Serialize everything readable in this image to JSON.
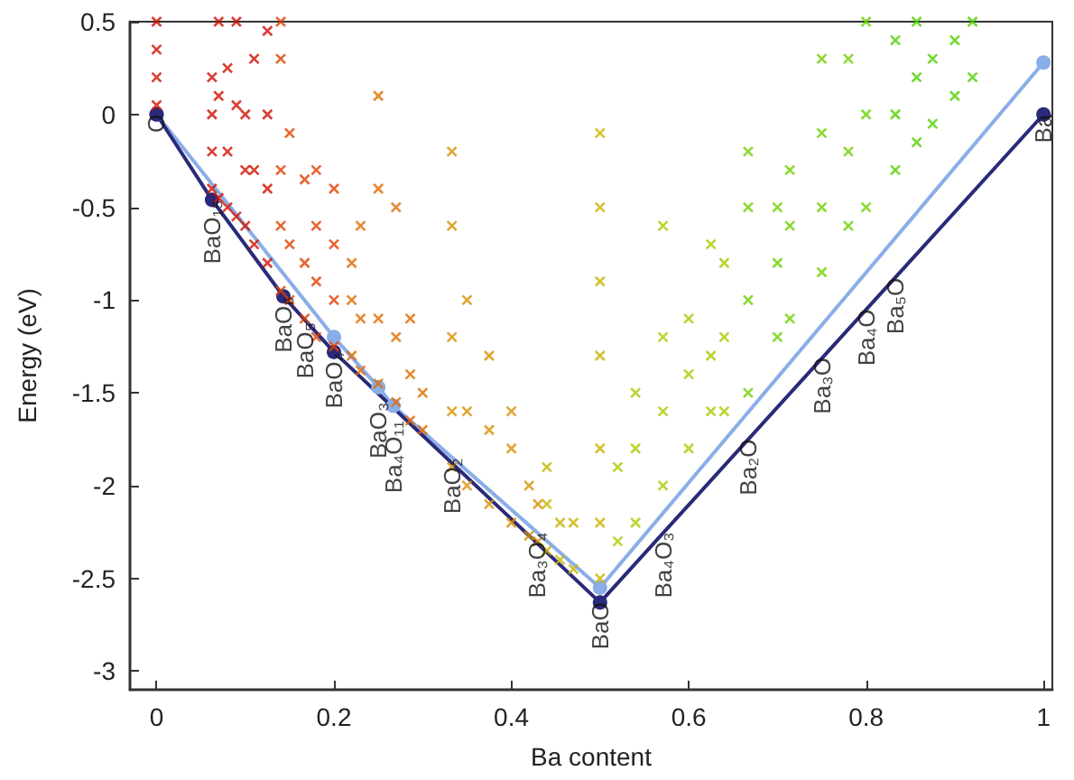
{
  "chart_data": {
    "type": "scatter",
    "xlabel": "Ba content",
    "ylabel": "Energy (eV)",
    "xlim": [
      -0.03,
      1.01
    ],
    "ylim": [
      -3.1,
      0.5
    ],
    "xticks": [
      0,
      0.2,
      0.4,
      0.6,
      0.8,
      1
    ],
    "yticks": [
      -3,
      -2.5,
      -2,
      -1.5,
      -1,
      -0.5,
      0,
      0.5
    ],
    "grid": false,
    "series": [
      {
        "marker": "cross",
        "color": "#d01000",
        "x": [
          0,
          0,
          0,
          0,
          0.0625,
          0.0625,
          0.0625,
          0.0625,
          0.07,
          0.07,
          0.07,
          0.08,
          0.08,
          0.08,
          0.09,
          0.09,
          0.09,
          0.1,
          0.1,
          0.1,
          0.11,
          0.11,
          0.11,
          0.125,
          0.125,
          0.125,
          0.125
        ],
        "values": [
          0.05,
          0.2,
          0.35,
          0.5,
          -0.4,
          -0.2,
          0,
          0.2,
          -0.45,
          0.1,
          0.5,
          -0.5,
          -0.2,
          0.25,
          -0.55,
          0.05,
          0.5,
          -0.6,
          -0.3,
          0,
          -0.7,
          -0.3,
          0.3,
          -0.8,
          -0.4,
          0,
          0.45
        ]
      },
      {
        "marker": "cross",
        "color": "#e04000",
        "x": [
          0.14,
          0.14,
          0.14,
          0.14,
          0.14,
          0.15,
          0.15,
          0.15,
          0.167,
          0.167,
          0.167,
          0.18,
          0.18,
          0.18,
          0.18,
          0.2,
          0.2,
          0.2,
          0.2
        ],
        "values": [
          -0.95,
          -0.6,
          -0.3,
          0.3,
          0.5,
          -1,
          -0.7,
          -0.1,
          -1.1,
          -0.8,
          -0.35,
          -1.2,
          -0.9,
          -0.6,
          -0.3,
          -1.25,
          -1,
          -0.7,
          -0.4
        ]
      },
      {
        "marker": "cross",
        "color": "#e06a00",
        "x": [
          0.22,
          0.22,
          0.22,
          0.23,
          0.23,
          0.23,
          0.25,
          0.25,
          0.25,
          0.25,
          0.27,
          0.27,
          0.27,
          0.286,
          0.286,
          0.286,
          0.3,
          0.3
        ],
        "values": [
          -1.3,
          -1,
          -0.8,
          -1.38,
          -1.1,
          -0.6,
          -1.45,
          -1.1,
          -0.4,
          0.1,
          -1.55,
          -1.2,
          -0.5,
          -1.65,
          -1.4,
          -1.1,
          -1.7,
          -1.5
        ]
      },
      {
        "marker": "cross",
        "color": "#d89000",
        "x": [
          0.333,
          0.333,
          0.333,
          0.333,
          0.333,
          0.35,
          0.35,
          0.35,
          0.375,
          0.375,
          0.375,
          0.4,
          0.4,
          0.4,
          0.42,
          0.42,
          0.43,
          0.43
        ],
        "values": [
          -1.9,
          -1.6,
          -1.2,
          -0.6,
          -0.2,
          -2,
          -1.6,
          -1,
          -2.1,
          -1.7,
          -1.3,
          -2.2,
          -1.8,
          -1.6,
          -2.27,
          -2,
          -2.3,
          -2.1
        ]
      },
      {
        "marker": "cross",
        "color": "#c8b400",
        "x": [
          0.44,
          0.44,
          0.44,
          0.455,
          0.455,
          0.47,
          0.47,
          0.5,
          0.5,
          0.5,
          0.5,
          0.5,
          0.5,
          0.5
        ],
        "values": [
          -2.35,
          -2.1,
          -1.9,
          -2.4,
          -2.2,
          -2.45,
          -2.2,
          -2.5,
          -2.2,
          -1.8,
          -1.3,
          -0.9,
          -0.5,
          -0.1
        ]
      },
      {
        "marker": "cross",
        "color": "#a8cc00",
        "x": [
          0.52,
          0.52,
          0.54,
          0.54,
          0.54,
          0.571,
          0.571,
          0.571,
          0.571,
          0.6,
          0.6,
          0.6,
          0.625,
          0.625,
          0.625,
          0.64,
          0.64,
          0.64
        ],
        "values": [
          -2.3,
          -1.9,
          -2.2,
          -1.8,
          -1.5,
          -2,
          -1.6,
          -1.2,
          -0.6,
          -1.8,
          -1.4,
          -1.1,
          -1.6,
          -1.3,
          -0.7,
          -1.6,
          -1.2,
          -0.8
        ]
      },
      {
        "marker": "cross",
        "color": "#70d000",
        "x": [
          0.667,
          0.667,
          0.667,
          0.667,
          0.7,
          0.7,
          0.7,
          0.714,
          0.714,
          0.714,
          0.75,
          0.75,
          0.75,
          0.75,
          0.78,
          0.78,
          0.78,
          0.8,
          0.8,
          0.8
        ],
        "values": [
          -1.5,
          -1,
          -0.5,
          -0.2,
          -1.2,
          -0.8,
          -0.5,
          -1.1,
          -0.6,
          -0.3,
          -0.85,
          -0.5,
          -0.1,
          0.3,
          -0.6,
          -0.2,
          0.3,
          -0.5,
          0,
          0.5
        ]
      },
      {
        "marker": "cross",
        "color": "#50d000",
        "x": [
          0.833,
          0.833,
          0.833,
          0.857,
          0.857,
          0.857,
          0.875,
          0.875,
          0.9,
          0.9,
          0.92,
          0.92
        ],
        "values": [
          -0.3,
          0,
          0.4,
          -0.15,
          0.2,
          0.5,
          -0.05,
          0.3,
          0.1,
          0.4,
          0.2,
          0.5
        ]
      },
      {
        "type": "line",
        "marker": "circle",
        "color": "#8aaee8",
        "x": [
          0,
          0.2,
          0.25,
          0.267,
          0.5,
          1
        ],
        "values": [
          0,
          -1.2,
          -1.47,
          -1.57,
          -2.55,
          0.28
        ]
      },
      {
        "type": "line",
        "marker": "circle",
        "color": "#2a2a7a",
        "x": [
          0,
          0.0625,
          0.143,
          0.2,
          0.5,
          1
        ],
        "values": [
          0,
          -0.46,
          -0.98,
          -1.28,
          -2.63,
          0
        ]
      }
    ],
    "annotations": [
      {
        "text": "O",
        "x": 0,
        "y": 0
      },
      {
        "text": "BaO₁₅",
        "x": 0.0625,
        "y": -0.46
      },
      {
        "text": "BaO₆",
        "x": 0.143,
        "y": -0.98
      },
      {
        "text": "BaO₅",
        "x": 0.167,
        "y": -1.12
      },
      {
        "text": "BaO₄",
        "x": 0.2,
        "y": -1.28
      },
      {
        "text": "BaO₃",
        "x": 0.25,
        "y": -1.55
      },
      {
        "text": "Ba₄O₁₁",
        "x": 0.267,
        "y": -1.65
      },
      {
        "text": "BaO₂",
        "x": 0.333,
        "y": -1.85
      },
      {
        "text": "Ba₃O₄",
        "x": 0.429,
        "y": -2.25
      },
      {
        "text": "BaO",
        "x": 0.5,
        "y": -2.63
      },
      {
        "text": "Ba₄O₃",
        "x": 0.571,
        "y": -2.25
      },
      {
        "text": "Ba₂O",
        "x": 0.667,
        "y": -1.75
      },
      {
        "text": "Ba₃O",
        "x": 0.75,
        "y": -1.31
      },
      {
        "text": "Ba₄O",
        "x": 0.8,
        "y": -1.05
      },
      {
        "text": "Ba₅O",
        "x": 0.833,
        "y": -0.88
      },
      {
        "text": "Ba",
        "x": 1,
        "y": 0
      }
    ]
  }
}
